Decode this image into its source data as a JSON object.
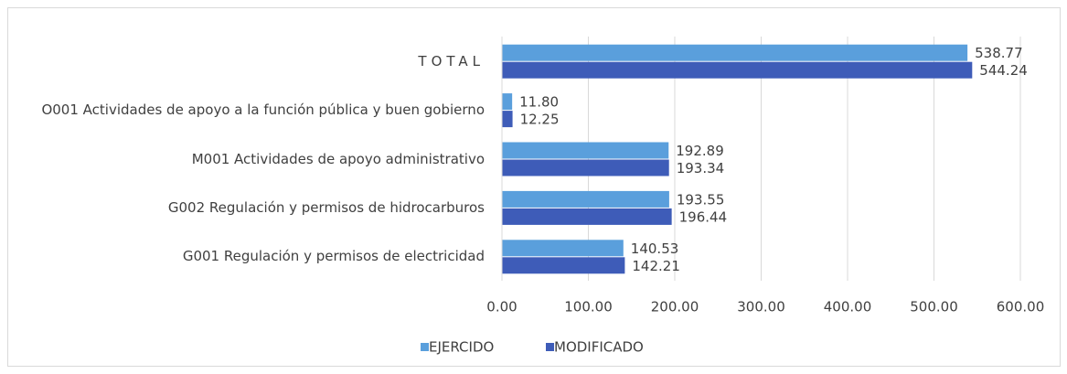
{
  "chart_data": {
    "type": "hbar",
    "categories": [
      "TOTAL",
      "O001 Actividades de apoyo a la función pública y buen gobierno",
      "M001 Actividades de apoyo administrativo",
      "G002 Regulación y permisos de hidrocarburos",
      "G001 Regulación y permisos de electricidad"
    ],
    "series": [
      {
        "name": "EJERCIDO",
        "color": "#5a9fdc",
        "values": [
          538.77,
          11.8,
          192.89,
          193.55,
          140.53
        ],
        "value_labels": [
          "538.77",
          "11.80",
          "192.89",
          "193.55",
          "140.53"
        ]
      },
      {
        "name": "MODIFICADO",
        "color": "#3e5cb8",
        "values": [
          544.24,
          12.25,
          193.34,
          196.44,
          142.21
        ],
        "value_labels": [
          "544.24",
          "12.25",
          "193.34",
          "196.44",
          "142.21"
        ]
      }
    ],
    "xlim": [
      0,
      600
    ],
    "xticks": [
      {
        "value": 0,
        "label": "0.00"
      },
      {
        "value": 100,
        "label": "100.00"
      },
      {
        "value": 200,
        "label": "200.00"
      },
      {
        "value": 300,
        "label": "300.00"
      },
      {
        "value": 400,
        "label": "400.00"
      },
      {
        "value": 500,
        "label": "500.00"
      },
      {
        "value": 600,
        "label": "600.00"
      }
    ],
    "grid": true,
    "legend": "bottom"
  }
}
